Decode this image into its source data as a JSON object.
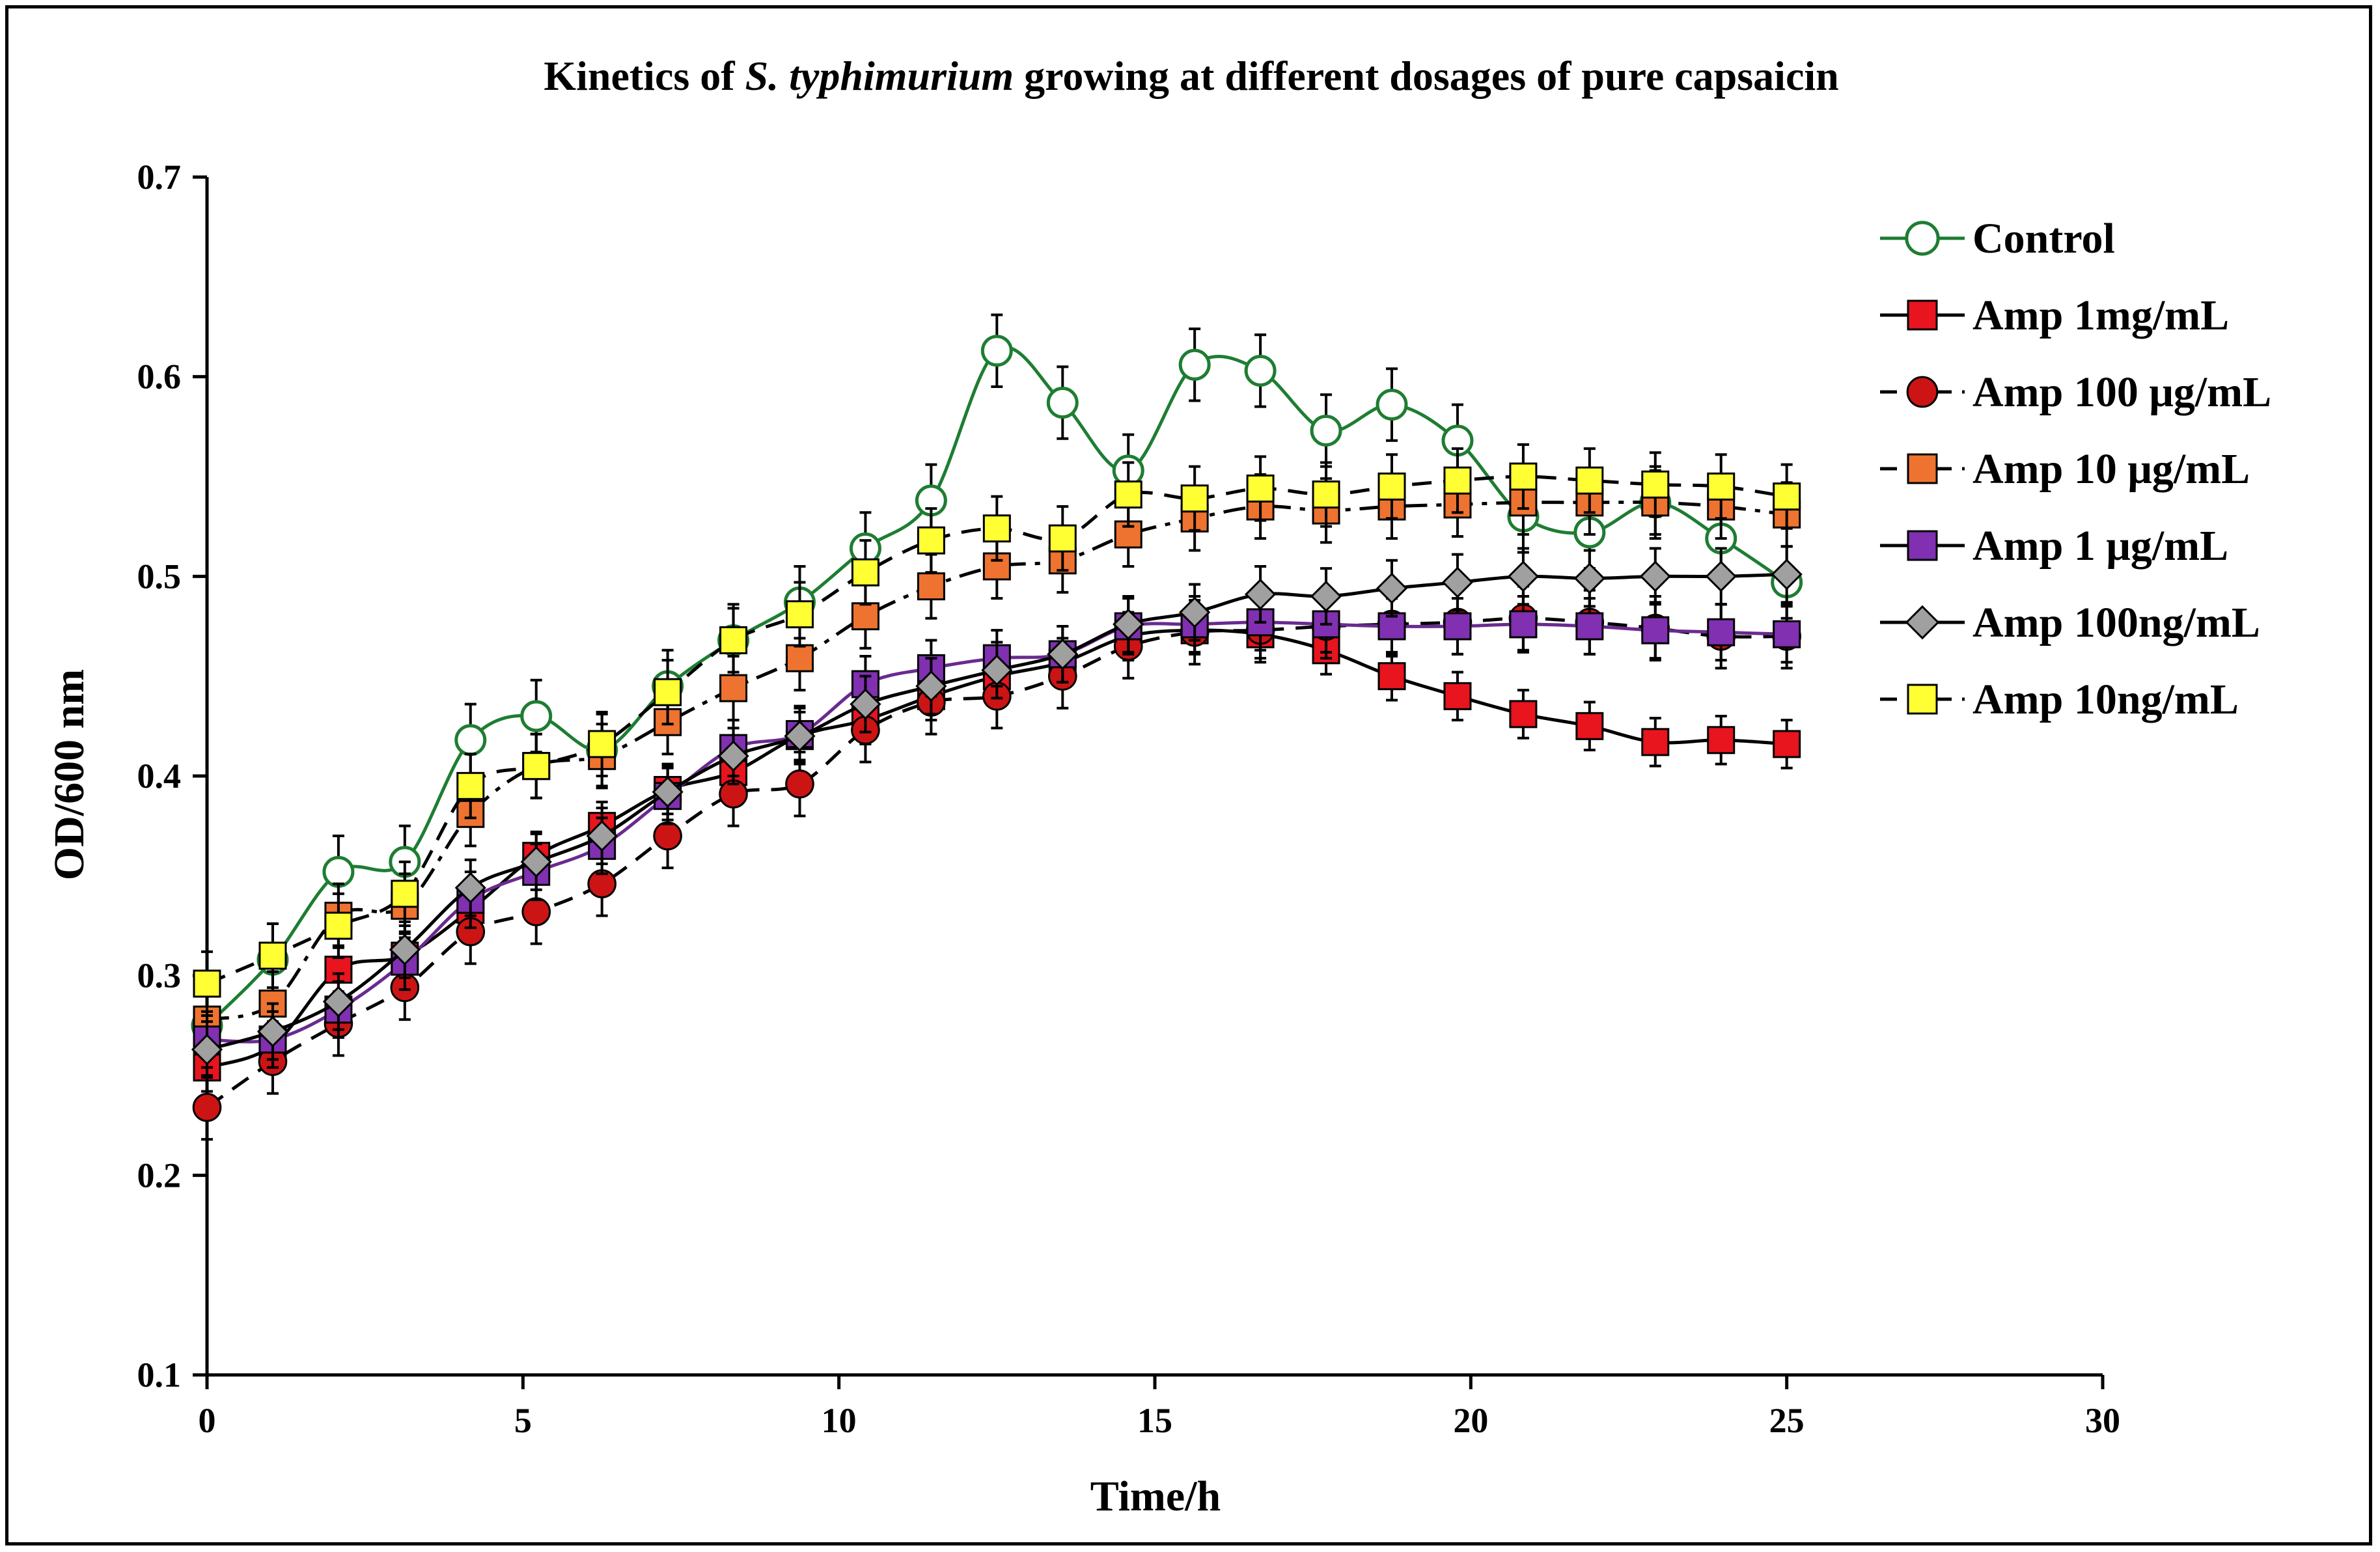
{
  "chart_data": {
    "type": "line",
    "title_parts": [
      "Kinetics of ",
      "S. typhimurium",
      " growing at different dosages of pure capsaicin"
    ],
    "xlabel": "Time/h",
    "ylabel": "OD/600 nm",
    "xlim": [
      0,
      30
    ],
    "ylim": [
      0.1,
      0.7
    ],
    "xticks": [
      0,
      5,
      10,
      15,
      20,
      25,
      30
    ],
    "yticks": [
      0.1,
      0.2,
      0.3,
      0.4,
      0.5,
      0.6,
      0.7
    ],
    "xtick_labels": [
      "0",
      "5",
      "10",
      "15",
      "20",
      "25",
      "30"
    ],
    "ytick_labels": [
      "0.1",
      "0.2",
      "0.3",
      "0.4",
      "0.5",
      "0.6",
      "0.7"
    ],
    "legend_position": "right",
    "x": [
      0,
      1.04,
      2.08,
      3.13,
      4.17,
      5.21,
      6.25,
      7.29,
      8.33,
      9.38,
      10.42,
      11.46,
      12.5,
      13.54,
      14.58,
      15.63,
      16.67,
      17.71,
      18.75,
      19.79,
      20.83,
      21.88,
      22.92,
      23.96,
      25
    ],
    "series": [
      {
        "name": "Control",
        "color": "#1e7d32",
        "marker": "circle-open",
        "dash": "solid",
        "err": 0.018,
        "values": [
          0.275,
          0.308,
          0.352,
          0.357,
          0.418,
          0.43,
          0.413,
          0.445,
          0.468,
          0.487,
          0.514,
          0.538,
          0.613,
          0.587,
          0.553,
          0.606,
          0.603,
          0.573,
          0.586,
          0.568,
          0.53,
          0.522,
          0.537,
          0.519,
          0.497
        ]
      },
      {
        "name": "Amp 1mg/mL",
        "color": "#e8141e",
        "marker": "square",
        "dash": "solid",
        "err": 0.012,
        "values": [
          0.254,
          0.265,
          0.303,
          0.31,
          0.333,
          0.36,
          0.375,
          0.393,
          0.402,
          0.42,
          0.428,
          0.44,
          0.45,
          0.457,
          0.47,
          0.473,
          0.471,
          0.463,
          0.45,
          0.44,
          0.431,
          0.425,
          0.417,
          0.418,
          0.416
        ]
      },
      {
        "name": "Amp 100 μg/mL",
        "color": "#cc1414",
        "marker": "circle",
        "dash": "dashed",
        "err": 0.016,
        "values": [
          0.234,
          0.257,
          0.276,
          0.294,
          0.322,
          0.332,
          0.346,
          0.37,
          0.391,
          0.396,
          0.423,
          0.437,
          0.44,
          0.45,
          0.465,
          0.472,
          0.473,
          0.475,
          0.476,
          0.477,
          0.479,
          0.477,
          0.474,
          0.47,
          0.47
        ]
      },
      {
        "name": "Amp 10 μg/mL",
        "color": "#ee7330",
        "marker": "square",
        "dash": "dashdot",
        "err": 0.016,
        "values": [
          0.278,
          0.286,
          0.33,
          0.335,
          0.381,
          0.405,
          0.41,
          0.427,
          0.444,
          0.459,
          0.48,
          0.495,
          0.505,
          0.508,
          0.521,
          0.529,
          0.535,
          0.533,
          0.535,
          0.536,
          0.537,
          0.537,
          0.537,
          0.535,
          0.531
        ]
      },
      {
        "name": "Amp 1 μg/mL",
        "color": "#8030b0",
        "marker": "square",
        "dash": "solid",
        "err": 0.014,
        "values": [
          0.268,
          0.268,
          0.283,
          0.307,
          0.338,
          0.352,
          0.365,
          0.39,
          0.414,
          0.421,
          0.446,
          0.454,
          0.459,
          0.461,
          0.475,
          0.476,
          0.477,
          0.476,
          0.475,
          0.475,
          0.476,
          0.475,
          0.473,
          0.472,
          0.471
        ]
      },
      {
        "name": "Amp 100ng/mL",
        "color": "#a0a0a0",
        "marker": "diamond",
        "dash": "solid",
        "err": 0.014,
        "values": [
          0.263,
          0.272,
          0.287,
          0.313,
          0.344,
          0.357,
          0.37,
          0.392,
          0.41,
          0.42,
          0.436,
          0.445,
          0.453,
          0.461,
          0.476,
          0.482,
          0.491,
          0.49,
          0.494,
          0.497,
          0.5,
          0.499,
          0.5,
          0.5,
          0.501
        ]
      },
      {
        "name": "Amp 10ng/mL",
        "color": "#ffff33",
        "marker": "square",
        "dash": "dashed",
        "err": 0.016,
        "values": [
          0.296,
          0.31,
          0.325,
          0.341,
          0.395,
          0.405,
          0.416,
          0.442,
          0.468,
          0.481,
          0.502,
          0.518,
          0.524,
          0.519,
          0.541,
          0.539,
          0.544,
          0.541,
          0.545,
          0.548,
          0.55,
          0.548,
          0.546,
          0.545,
          0.54
        ]
      }
    ]
  }
}
